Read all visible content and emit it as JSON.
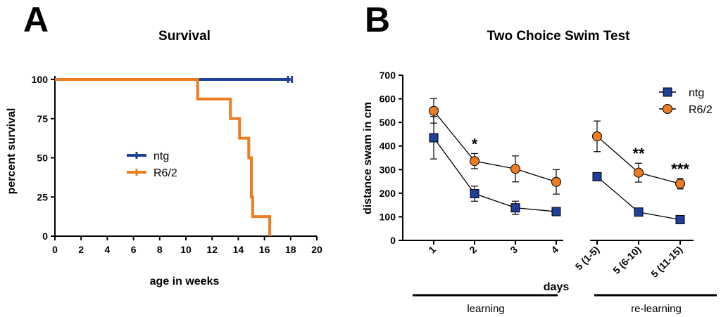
{
  "colors": {
    "ntg": "#1f3f99",
    "r62": "#ee7d22",
    "axis": "#000000"
  },
  "panel_a": {
    "letter": "A",
    "legend": [
      "ntg",
      "R6/2"
    ]
  },
  "panel_b": {
    "letter": "B",
    "legend": [
      "ntg",
      "R6/2"
    ],
    "days_label": "days",
    "group_labels": [
      "learning",
      "re-learning"
    ]
  },
  "chart_data": [
    {
      "type": "line",
      "subtype": "kaplan-meier",
      "title": "Survival",
      "xlabel": "age in weeks",
      "ylabel": "percent survival",
      "xlim": [
        0,
        20
      ],
      "ylim": [
        0,
        100
      ],
      "xticks": [
        0,
        2,
        4,
        6,
        8,
        10,
        12,
        14,
        16,
        18,
        20
      ],
      "yticks": [
        0,
        25,
        50,
        75,
        100
      ],
      "series": [
        {
          "name": "ntg",
          "steps": [
            [
              0,
              100
            ],
            [
              18,
              100
            ]
          ],
          "censored": [
            17.8,
            18.1
          ]
        },
        {
          "name": "R6/2",
          "steps": [
            [
              0,
              100
            ],
            [
              10.9,
              100
            ],
            [
              10.9,
              87.5
            ],
            [
              13.4,
              87.5
            ],
            [
              13.4,
              75
            ],
            [
              14.1,
              75
            ],
            [
              14.1,
              62.5
            ],
            [
              14.8,
              62.5
            ],
            [
              14.8,
              50
            ],
            [
              15.0,
              50
            ],
            [
              15.0,
              25
            ],
            [
              15.1,
              25
            ],
            [
              15.1,
              12.5
            ],
            [
              16.4,
              12.5
            ],
            [
              16.4,
              0
            ]
          ],
          "censored": []
        }
      ]
    },
    {
      "type": "line",
      "title": "Two Choice Swim Test",
      "xlabel": "days",
      "ylabel": "distance swam in cm",
      "ylim": [
        0,
        700
      ],
      "yticks": [
        0,
        100,
        200,
        300,
        400,
        500,
        600,
        700
      ],
      "categories": [
        "1",
        "2",
        "3",
        "4",
        "5 (1-5)",
        "5 (6-10)",
        "5 (11-15)"
      ],
      "segments": [
        [
          0,
          1,
          2,
          3
        ],
        [
          4,
          5,
          6
        ]
      ],
      "series": [
        {
          "name": "ntg",
          "marker": "square",
          "values": [
            435,
            198,
            138,
            122,
            270,
            120,
            88
          ],
          "errors": [
            90,
            32,
            28,
            16,
            10,
            10,
            8
          ]
        },
        {
          "name": "R6/2",
          "marker": "circle",
          "values": [
            549,
            336,
            303,
            248,
            441,
            287,
            240
          ],
          "errors": [
            52,
            32,
            55,
            52,
            65,
            40,
            22
          ]
        }
      ],
      "significance": [
        {
          "index": 1,
          "text": "*"
        },
        {
          "index": 5,
          "text": "**"
        },
        {
          "index": 6,
          "text": "***"
        }
      ]
    }
  ]
}
